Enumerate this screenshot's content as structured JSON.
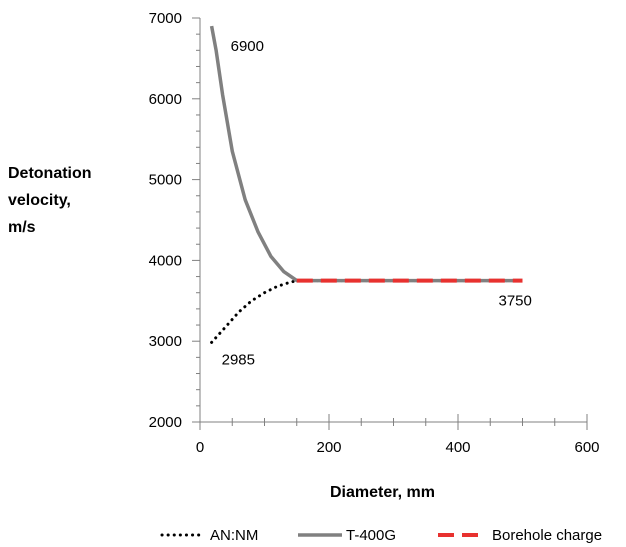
{
  "chart_data": {
    "type": "line",
    "xlabel": "Diameter, mm",
    "ylabel_lines": [
      "Detonation",
      "velocity,",
      "m/s"
    ],
    "xlim": [
      0,
      600
    ],
    "ylim": [
      2000,
      7000
    ],
    "xticks": [
      0,
      200,
      400,
      600
    ],
    "yticks": [
      2000,
      3000,
      4000,
      5000,
      6000,
      7000
    ],
    "grid": false,
    "legend_position": "bottom",
    "series": [
      {
        "name": "AN:NM",
        "color": "#000000",
        "style": "dotted",
        "points": [
          [
            18,
            2985
          ],
          [
            40,
            3180
          ],
          [
            60,
            3360
          ],
          [
            80,
            3500
          ],
          [
            100,
            3600
          ],
          [
            120,
            3680
          ],
          [
            140,
            3730
          ],
          [
            150,
            3750
          ],
          [
            200,
            3750
          ],
          [
            300,
            3750
          ],
          [
            400,
            3750
          ],
          [
            500,
            3750
          ]
        ]
      },
      {
        "name": "T-400G",
        "color": "#808080",
        "style": "solid",
        "points": [
          [
            18,
            6900
          ],
          [
            25,
            6600
          ],
          [
            35,
            6050
          ],
          [
            50,
            5350
          ],
          [
            70,
            4750
          ],
          [
            90,
            4350
          ],
          [
            110,
            4050
          ],
          [
            130,
            3860
          ],
          [
            150,
            3750
          ],
          [
            200,
            3750
          ],
          [
            300,
            3750
          ],
          [
            400,
            3750
          ],
          [
            500,
            3750
          ]
        ]
      },
      {
        "name": "Borehole charge",
        "color": "#e8312f",
        "style": "dashed",
        "points": [
          [
            150,
            3750
          ],
          [
            200,
            3750
          ],
          [
            300,
            3750
          ],
          [
            400,
            3750
          ],
          [
            500,
            3750
          ]
        ]
      }
    ],
    "annotations": [
      {
        "text": "6900",
        "x": 18,
        "y": 6900
      },
      {
        "text": "2985",
        "x": 18,
        "y": 2985
      },
      {
        "text": "3750",
        "x": 500,
        "y": 3750
      }
    ]
  }
}
